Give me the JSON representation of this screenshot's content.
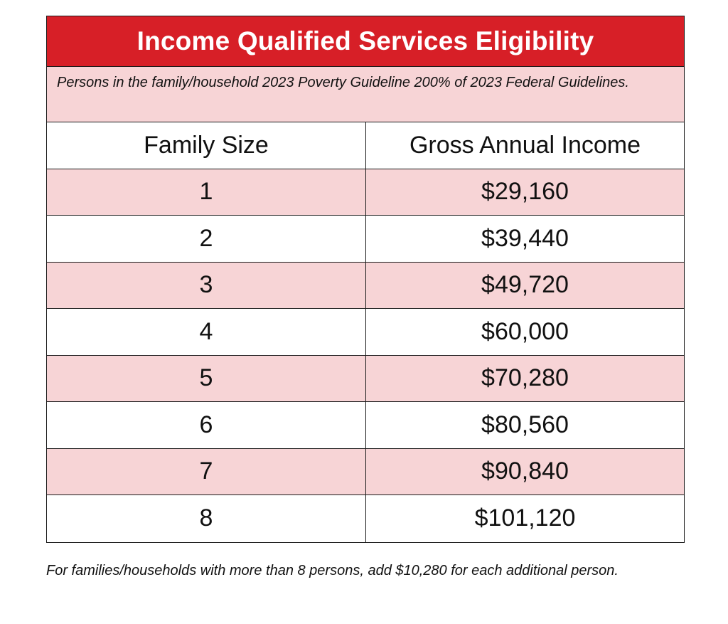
{
  "title": "Income Qualified Services Eligibility",
  "subtitle": "Persons in the family/household 2023 Poverty Guideline 200% of 2023 Federal Guidelines.",
  "columns": [
    "Family Size",
    "Gross Annual Income"
  ],
  "rows": [
    {
      "family_size": "1",
      "income": "$29,160"
    },
    {
      "family_size": "2",
      "income": "$39,440"
    },
    {
      "family_size": "3",
      "income": "$49,720"
    },
    {
      "family_size": "4",
      "income": "$60,000"
    },
    {
      "family_size": "5",
      "income": "$70,280"
    },
    {
      "family_size": "6",
      "income": "$80,560"
    },
    {
      "family_size": "7",
      "income": "$90,840"
    },
    {
      "family_size": "8",
      "income": "$101,120"
    }
  ],
  "footnote": "For families/households with more than 8 persons, add $10,280 for each additional person.",
  "colors": {
    "title_background": "#d71f27",
    "title_text": "#ffffff",
    "shaded_row": "#f7d4d6",
    "border": "#1a1a1a"
  }
}
